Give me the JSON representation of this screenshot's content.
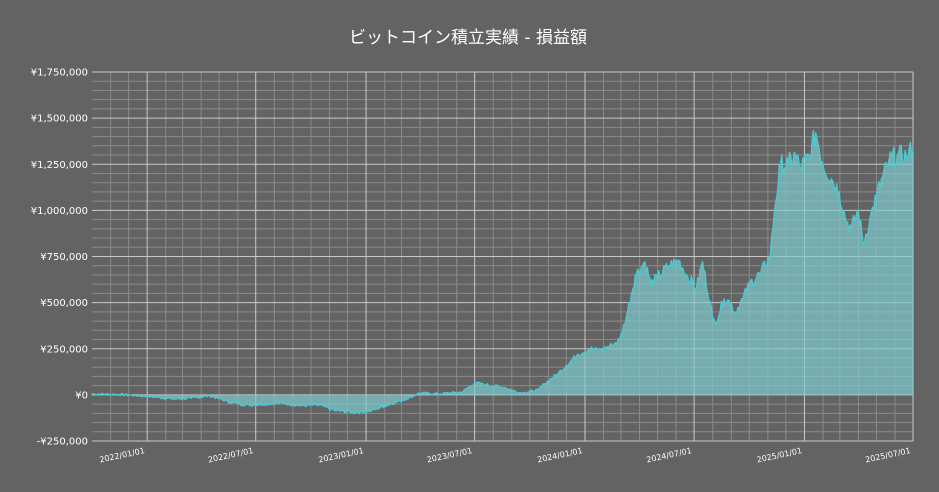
{
  "chart_data": {
    "type": "area",
    "title": "ビットコイン積立実績 - 損益額",
    "xlabel": "",
    "ylabel": "",
    "ylim": [
      -250000,
      1750000
    ],
    "xlim": [
      "2021/10/01",
      "2025/07/01"
    ],
    "grid": true,
    "legend": "none",
    "y_ticks": [
      {
        "value": 1750000,
        "label": "¥1,750,000"
      },
      {
        "value": 1500000,
        "label": "¥1,500,000"
      },
      {
        "value": 1250000,
        "label": "¥1,250,000"
      },
      {
        "value": 1000000,
        "label": "¥1,000,000"
      },
      {
        "value": 750000,
        "label": "¥750,000"
      },
      {
        "value": 500000,
        "label": "¥500,000"
      },
      {
        "value": 250000,
        "label": "¥250,000"
      },
      {
        "value": 0,
        "label": "¥0"
      },
      {
        "value": -250000,
        "label": "-¥250,000"
      }
    ],
    "x_ticks": [
      {
        "date": "2022/01/01",
        "label": "2022/01/01"
      },
      {
        "date": "2022/07/01",
        "label": "2022/07/01"
      },
      {
        "date": "2023/01/01",
        "label": "2023/01/01"
      },
      {
        "date": "2023/07/01",
        "label": "2023/07/01"
      },
      {
        "date": "2024/01/01",
        "label": "2024/01/01"
      },
      {
        "date": "2024/07/01",
        "label": "2024/07/01"
      },
      {
        "date": "2025/01/01",
        "label": "2025/01/01"
      },
      {
        "date": "2025/07/01",
        "label": "2025/07/01"
      }
    ],
    "colors": {
      "background": "#636363",
      "line": "#4fc7cf",
      "fill": "#7fc9cc",
      "major_grid": "#c8c8c8",
      "minor_grid": "#8a8a8a",
      "text": "#ffffff"
    },
    "series": [
      {
        "x": [
          "2021/10/01",
          "2021/11/15",
          "2021/12/20",
          "2022/01/15",
          "2022/02/15",
          "2022/03/15",
          "2022/04/15",
          "2022/05/01",
          "2022/05/20",
          "2022/06/15",
          "2022/07/15",
          "2022/08/15",
          "2022/09/15",
          "2022/10/15",
          "2022/11/10",
          "2022/12/15",
          "2023/01/10",
          "2023/02/01",
          "2023/03/10",
          "2023/04/01",
          "2023/05/01",
          "2023/06/10",
          "2023/07/01",
          "2023/07/20",
          "2023/08/20",
          "2023/09/15",
          "2023/10/15",
          "2023/10/25",
          "2023/11/15",
          "2023/12/01",
          "2023/12/20",
          "2024/01/10",
          "2024/01/25",
          "2024/02/15",
          "2024/02/28",
          "2024/03/10",
          "2024/03/25",
          "2024/04/10",
          "2024/04/20",
          "2024/05/01",
          "2024/05/20",
          "2024/06/05",
          "2024/06/20",
          "2024/07/05",
          "2024/07/15",
          "2024/08/01",
          "2024/08/05",
          "2024/08/20",
          "2024/09/01",
          "2024/09/06",
          "2024/09/20",
          "2024/10/01",
          "2024/10/20",
          "2024/11/05",
          "2024/11/12",
          "2024/11/22",
          "2024/12/05",
          "2024/12/17",
          "2024/12/25",
          "2025/01/10",
          "2025/01/20",
          "2025/02/01",
          "2025/02/15",
          "2025/02/28",
          "2025/03/10",
          "2025/03/20",
          "2025/04/01",
          "2025/04/09",
          "2025/04/20",
          "2025/05/01",
          "2025/05/22",
          "2025/06/05",
          "2025/06/20",
          "2025/07/01"
        ],
        "y": [
          5000,
          2000,
          -5000,
          -12000,
          -22000,
          -18000,
          -5000,
          -20000,
          -40000,
          -55000,
          -50000,
          -45000,
          -58000,
          -55000,
          -85000,
          -95000,
          -85000,
          -60000,
          -20000,
          10000,
          5000,
          15000,
          65000,
          55000,
          40000,
          10000,
          25000,
          60000,
          110000,
          160000,
          220000,
          250000,
          240000,
          270000,
          300000,
          420000,
          650000,
          720000,
          600000,
          640000,
          700000,
          730000,
          640000,
          580000,
          720000,
          420000,
          390000,
          520000,
          500000,
          440000,
          520000,
          600000,
          660000,
          760000,
          1000000,
          1250000,
          1250000,
          1300000,
          1230000,
          1300000,
          1420000,
          1250000,
          1170000,
          1100000,
          960000,
          900000,
          1000000,
          820000,
          950000,
          1080000,
          1270000,
          1300000,
          1290000,
          1340000
        ]
      }
    ]
  }
}
